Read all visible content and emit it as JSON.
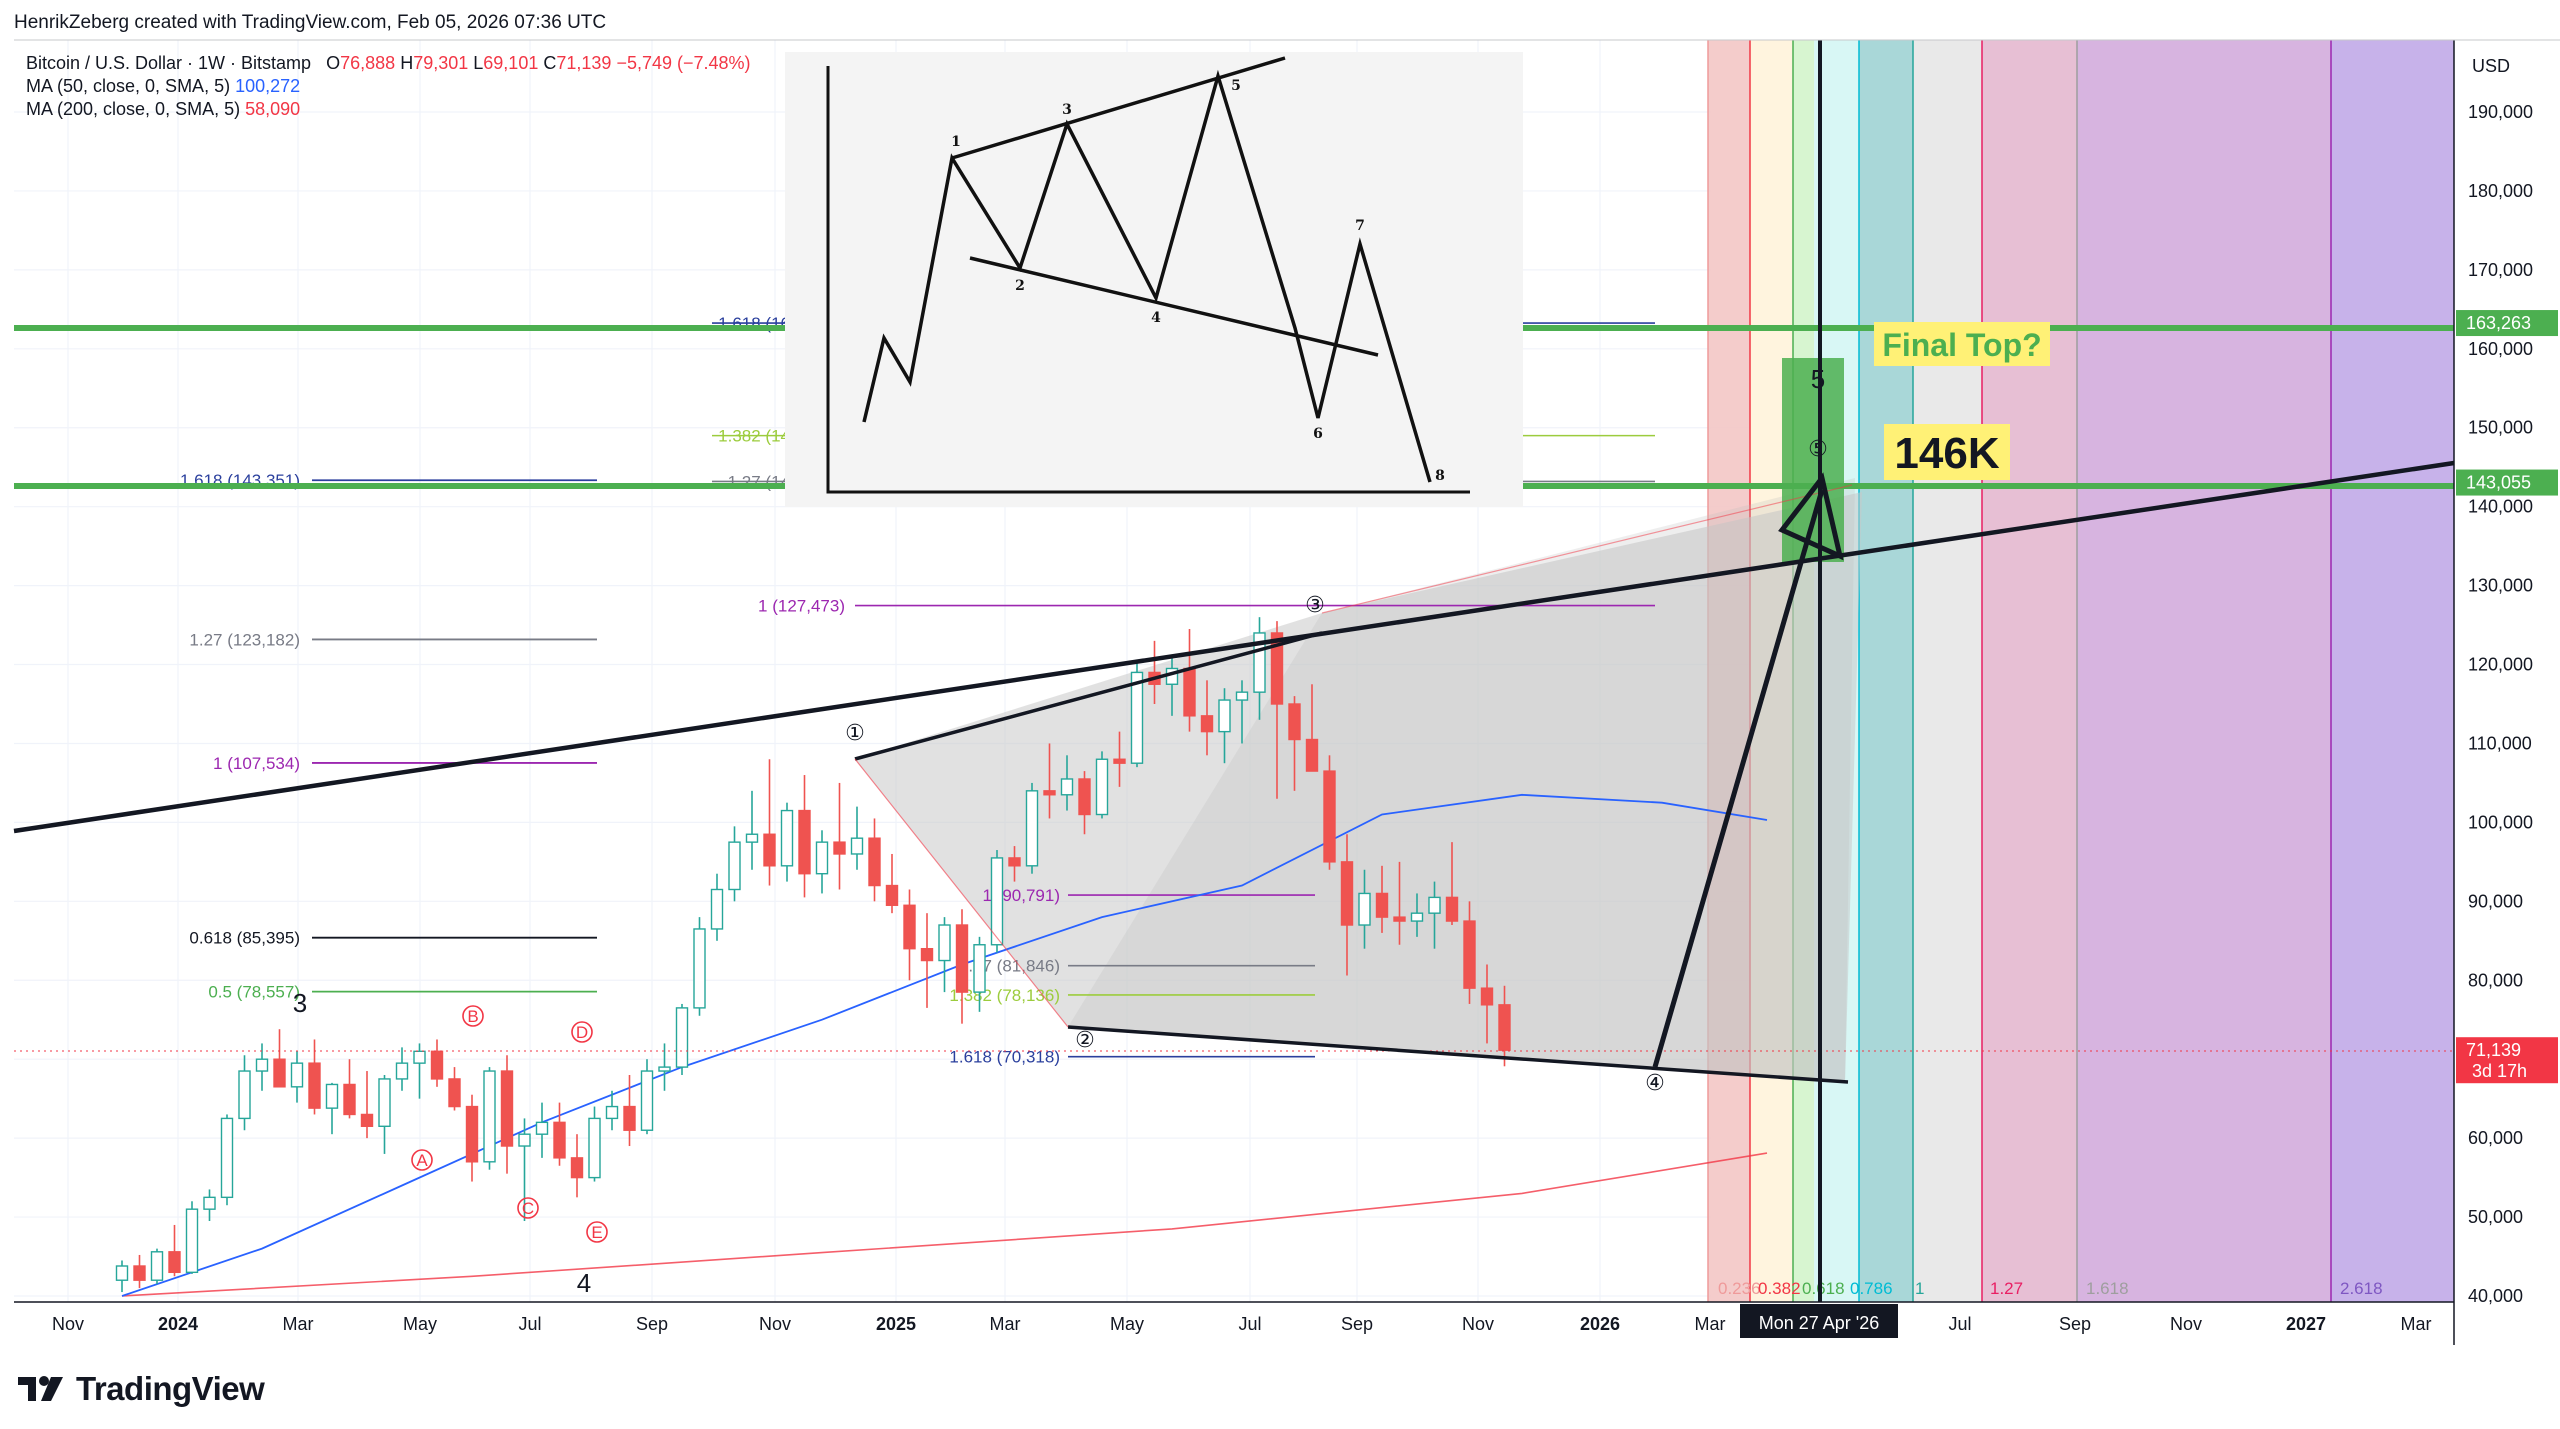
{
  "credit": "HenrikZeberg created with TradingView.com, Feb 05, 2026 07:36 UTC",
  "brand": "TradingView",
  "legend": {
    "symbol": "Bitcoin / U.S. Dollar · 1W · Bitstamp",
    "ohlc": {
      "o_label": "O",
      "o": "76,888",
      "h_label": "H",
      "h": "79,301",
      "l_label": "L",
      "l": "69,101",
      "c_label": "C",
      "c": "71,139",
      "change": "−5,749 (−7.48%)"
    },
    "ma50": {
      "label": "MA (50, close, 0, SMA, 5)",
      "value": "100,272"
    },
    "ma200": {
      "label": "MA (200, close, 0, SMA, 5)",
      "value": "58,090"
    }
  },
  "colors": {
    "up": "#26a69a",
    "down": "#ef5350",
    "ma50": "#2962ff",
    "ma200": "#f23645",
    "green_level": "#4caf50",
    "bg": "#ffffff"
  },
  "y_axis": {
    "currency": "USD",
    "ticks": [
      "190,000",
      "180,000",
      "170,000",
      "160,000",
      "150,000",
      "140,000",
      "130,000",
      "120,000",
      "110,000",
      "100,000",
      "90,000",
      "80,000",
      "70,000",
      "60,000",
      "50,000",
      "40,000"
    ],
    "badges": [
      {
        "text": "163,263",
        "color": "#4caf50",
        "value": 163263
      },
      {
        "text": "143,055",
        "color": "#4caf50",
        "value": 143055
      },
      {
        "text": "71,139",
        "sub": "3d 17h",
        "color": "#f23645",
        "value": 71139
      }
    ]
  },
  "x_axis": {
    "ticks": [
      {
        "text": "Nov",
        "bold": false
      },
      {
        "text": "2024",
        "bold": true
      },
      {
        "text": "Mar",
        "bold": false
      },
      {
        "text": "May",
        "bold": false
      },
      {
        "text": "Jul",
        "bold": false
      },
      {
        "text": "Sep",
        "bold": false
      },
      {
        "text": "Nov",
        "bold": false
      },
      {
        "text": "2025",
        "bold": true
      },
      {
        "text": "Mar",
        "bold": false
      },
      {
        "text": "May",
        "bold": false
      },
      {
        "text": "Jul",
        "bold": false
      },
      {
        "text": "Sep",
        "bold": false
      },
      {
        "text": "Nov",
        "bold": false
      },
      {
        "text": "2026",
        "bold": true
      },
      {
        "text": "Mar",
        "bold": false
      },
      {
        "text": "Jul",
        "bold": false
      },
      {
        "text": "Sep",
        "bold": false
      },
      {
        "text": "Nov",
        "bold": false
      },
      {
        "text": "2027",
        "bold": true
      },
      {
        "text": "Mar",
        "bold": false
      }
    ],
    "crosshair_label": "Mon 27 Apr '26"
  },
  "annotations": {
    "final_top": "Final Top?",
    "target": "146K",
    "wave5_label": "5",
    "wave3_label": "3",
    "wave4_label": "4",
    "waves_circled": [
      "①",
      "②",
      "③",
      "④",
      "⑤"
    ],
    "abcde": [
      "A",
      "B",
      "C",
      "D",
      "E"
    ]
  },
  "fib_left": [
    {
      "text": "1.618 (143,351)",
      "color": "#2a3f9d",
      "value": 143351
    },
    {
      "text": "1.27 (123,182)",
      "color": "#787b86",
      "value": 123182
    },
    {
      "text": "1 (107,534)",
      "color": "#9c27b0",
      "value": 107534
    },
    {
      "text": "0.618 (85,395)",
      "color": "#131722",
      "value": 85395
    },
    {
      "text": "0.5 (78,557)",
      "color": "#4caf50",
      "value": 78557
    }
  ],
  "fib_mid": [
    {
      "text": "1.618 (16",
      "color": "#2a3f9d",
      "value": 163263
    },
    {
      "text": "1.382 (14",
      "color": "#9ccc3d",
      "value": 149000
    },
    {
      "text": "1.27 (14",
      "color": "#787b86",
      "value": 143200
    },
    {
      "text": "1 (127,473)",
      "color": "#9c27b0",
      "value": 127473
    },
    {
      "text": "1 (90,791)",
      "color": "#9c27b0",
      "value": 90791
    },
    {
      "text": "1.27 (81,846)",
      "color": "#787b86",
      "value": 81846
    },
    {
      "text": "1.382 (78,136)",
      "color": "#9ccc3d",
      "value": 78136
    },
    {
      "text": "1.618 (70,318)",
      "color": "#2a3f9d",
      "value": 70318
    }
  ],
  "time_fib_labels": [
    {
      "text": "0.236",
      "color": "#ef9a9a"
    },
    {
      "text": "0.382",
      "color": "#f23645"
    },
    {
      "text": "0.618",
      "color": "#4caf50"
    },
    {
      "text": "0.786",
      "color": "#00bcd4"
    },
    {
      "text": "1",
      "color": "#26a69a"
    },
    {
      "text": "1.27",
      "color": "#e91e63"
    },
    {
      "text": "1.618",
      "color": "#9e9e9e"
    },
    {
      "text": "2.618",
      "color": "#7e57c2"
    }
  ],
  "inset": {
    "points": [
      "1",
      "2",
      "3",
      "4",
      "5",
      "6",
      "7",
      "8"
    ]
  },
  "chart_data": {
    "type": "candlestick",
    "title": "Bitcoin / U.S. Dollar · 1W · Bitstamp",
    "ylim": [
      40000,
      195000
    ],
    "series": [
      {
        "name": "MA (50, close, 0, SMA, 5)",
        "kind": "line",
        "points": [
          [
            0,
            40000
          ],
          [
            8,
            46000
          ],
          [
            16,
            54000
          ],
          [
            24,
            62000
          ],
          [
            32,
            69000
          ],
          [
            40,
            75000
          ],
          [
            48,
            82000
          ],
          [
            56,
            88000
          ],
          [
            64,
            92000
          ],
          [
            72,
            101000
          ],
          [
            80,
            103500
          ],
          [
            88,
            102500
          ],
          [
            94,
            100300
          ]
        ]
      },
      {
        "name": "MA (200, close, 0, SMA, 5)",
        "kind": "line",
        "points": [
          [
            0,
            40000
          ],
          [
            20,
            42500
          ],
          [
            40,
            45500
          ],
          [
            60,
            48500
          ],
          [
            80,
            53000
          ],
          [
            94,
            58100
          ]
        ]
      }
    ],
    "candles": [
      [
        42000,
        44500,
        40500,
        43800
      ],
      [
        43800,
        45200,
        41000,
        42000
      ],
      [
        42000,
        46000,
        41500,
        45600
      ],
      [
        45600,
        49000,
        42500,
        43000
      ],
      [
        43000,
        52000,
        42800,
        51000
      ],
      [
        51000,
        53500,
        49500,
        52500
      ],
      [
        52500,
        63000,
        51500,
        62500
      ],
      [
        62500,
        70500,
        61000,
        68500
      ],
      [
        68500,
        72000,
        66000,
        70000
      ],
      [
        70000,
        73800,
        67500,
        66500
      ],
      [
        66500,
        71000,
        64500,
        69500
      ],
      [
        69500,
        72500,
        63000,
        63800
      ],
      [
        63800,
        67000,
        60500,
        66800
      ],
      [
        66800,
        70000,
        62500,
        63000
      ],
      [
        63000,
        68500,
        60000,
        61500
      ],
      [
        61500,
        68000,
        58000,
        67500
      ],
      [
        67500,
        71500,
        66000,
        69500
      ],
      [
        69500,
        72000,
        65000,
        71000
      ],
      [
        71000,
        72500,
        66500,
        67500
      ],
      [
        67500,
        69000,
        63500,
        64000
      ],
      [
        64000,
        65500,
        54500,
        57000
      ],
      [
        57000,
        69000,
        56000,
        68500
      ],
      [
        68500,
        70500,
        55500,
        59000
      ],
      [
        59000,
        62500,
        49500,
        60500
      ],
      [
        60500,
        64500,
        57500,
        62000
      ],
      [
        62000,
        64500,
        56500,
        57500
      ],
      [
        57500,
        60500,
        52500,
        55000
      ],
      [
        55000,
        64000,
        54500,
        62500
      ],
      [
        62500,
        66000,
        61000,
        64000
      ],
      [
        64000,
        68000,
        59000,
        61000
      ],
      [
        61000,
        70000,
        60500,
        68500
      ],
      [
        68500,
        72000,
        66000,
        69000
      ],
      [
        69000,
        77000,
        68000,
        76500
      ],
      [
        76500,
        88000,
        75500,
        86500
      ],
      [
        86500,
        93500,
        85000,
        91500
      ],
      [
        91500,
        99500,
        90000,
        97500
      ],
      [
        97500,
        104000,
        94000,
        98500
      ],
      [
        98500,
        108000,
        92000,
        94500
      ],
      [
        94500,
        102500,
        92500,
        101500
      ],
      [
        101500,
        106000,
        90500,
        93500
      ],
      [
        93500,
        99000,
        91000,
        97500
      ],
      [
        97500,
        105000,
        91500,
        96000
      ],
      [
        96000,
        102000,
        94000,
        98000
      ],
      [
        98000,
        100500,
        90000,
        92000
      ],
      [
        92000,
        96000,
        88500,
        89500
      ],
      [
        89500,
        91500,
        80000,
        84000
      ],
      [
        84000,
        88500,
        76500,
        82500
      ],
      [
        82500,
        88000,
        78500,
        87000
      ],
      [
        87000,
        89000,
        74500,
        78500
      ],
      [
        78500,
        85500,
        76000,
        84500
      ],
      [
        84500,
        96500,
        83500,
        95500
      ],
      [
        95500,
        97000,
        92500,
        94500
      ],
      [
        94500,
        105000,
        93500,
        104000
      ],
      [
        104000,
        110000,
        100500,
        103500
      ],
      [
        103500,
        108500,
        101500,
        105500
      ],
      [
        105500,
        106500,
        98500,
        101000
      ],
      [
        101000,
        109000,
        100500,
        108000
      ],
      [
        108000,
        111500,
        104500,
        107500
      ],
      [
        107500,
        120500,
        107000,
        119000
      ],
      [
        119000,
        123000,
        115000,
        117500
      ],
      [
        117500,
        121000,
        113500,
        119500
      ],
      [
        119500,
        124500,
        111500,
        113500
      ],
      [
        113500,
        118000,
        108500,
        111500
      ],
      [
        111500,
        117000,
        107500,
        115500
      ],
      [
        115500,
        118000,
        110000,
        116500
      ],
      [
        116500,
        126000,
        113000,
        124000
      ],
      [
        124000,
        125500,
        103000,
        115000
      ],
      [
        115000,
        116000,
        104000,
        110500
      ],
      [
        110500,
        117500,
        106500,
        106500
      ],
      [
        106500,
        108500,
        94000,
        95000
      ],
      [
        95000,
        98500,
        80600,
        87000
      ],
      [
        87000,
        94000,
        84000,
        91000
      ],
      [
        91000,
        94500,
        86000,
        88000
      ],
      [
        88000,
        95000,
        84500,
        87500
      ],
      [
        87500,
        91000,
        85500,
        88500
      ],
      [
        88500,
        92500,
        84000,
        90500
      ],
      [
        90500,
        97500,
        87000,
        87500
      ],
      [
        87500,
        90000,
        77000,
        79000
      ],
      [
        79000,
        82000,
        72000,
        76888
      ],
      [
        76888,
        79301,
        69101,
        71139
      ]
    ]
  }
}
